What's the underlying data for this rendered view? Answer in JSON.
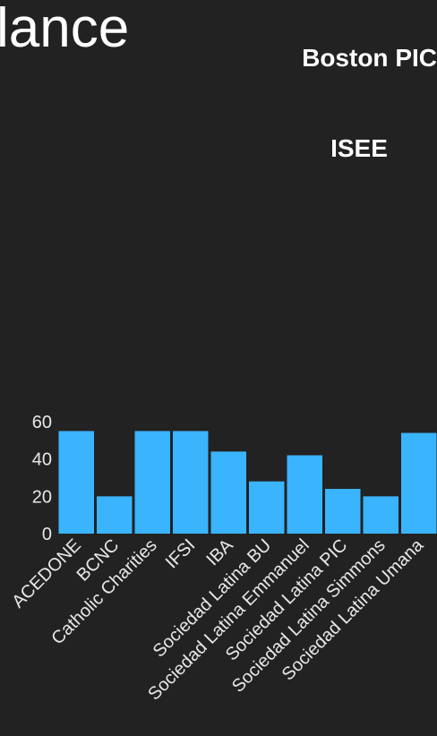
{
  "header": {
    "title": "lance",
    "subtitle": "Boston PIC",
    "section": "ISEE"
  },
  "chart_data": {
    "type": "bar",
    "categories": [
      "ACEDONE",
      "BCNC",
      "Catholic Charities",
      "IFSI",
      "IBA",
      "Sociedad Latina BU",
      "Sociedad Latina Emmanuel",
      "Sociedad Latina PIC",
      "Sociedad Latina Simmons",
      "Sociedad Latina Umana"
    ],
    "values": [
      55,
      20,
      55,
      55,
      44,
      28,
      42,
      24,
      20,
      54
    ],
    "color": "#3ab4fc",
    "ylim": [
      0,
      60
    ],
    "yticks": [
      0,
      20,
      40,
      60
    ],
    "grid": false
  }
}
